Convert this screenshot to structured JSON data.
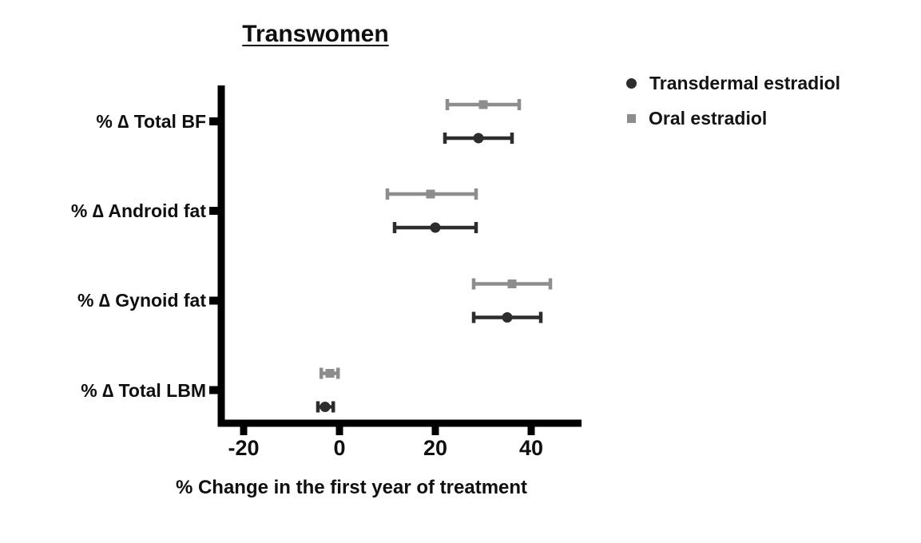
{
  "figure": {
    "title": "Transwomen",
    "x_axis_title": "% Change in the first year of treatment"
  },
  "legend": {
    "position": "top-right",
    "items": [
      {
        "label": "Transdermal estradiol",
        "marker": "circle",
        "color": "#2d2d2d"
      },
      {
        "label": "Oral estradiol",
        "marker": "square",
        "color": "#8d8d8d"
      }
    ]
  },
  "chart_data": {
    "type": "scatter",
    "subtype": "horizontal dot plot with error bars (forest-style)",
    "title": "Transwomen",
    "xlabel": "% Change in the first year of treatment",
    "ylabel": "",
    "categories": [
      "% ∆ Total BF",
      "% ∆ Android fat",
      "% ∆ Gynoid fat",
      "% ∆ Total LBM"
    ],
    "x_ticks": [
      "-20",
      "0",
      "20",
      "40"
    ],
    "x_tick_values": [
      -20,
      0,
      20,
      40
    ],
    "xlim": [
      -25,
      51
    ],
    "grid": false,
    "legend_position": "top-right",
    "axis_color": "#000000",
    "series": [
      {
        "name": "Oral estradiol",
        "marker": "square",
        "color": "#8d8d8d",
        "values": [
          30,
          19,
          36,
          -2
        ],
        "ci_low": [
          22.5,
          10,
          28,
          -3.8
        ],
        "ci_high": [
          37.5,
          28.5,
          44,
          -0.3
        ]
      },
      {
        "name": "Transdermal estradiol",
        "marker": "circle",
        "color": "#2d2d2d",
        "values": [
          29,
          20,
          35,
          -3
        ],
        "ci_low": [
          22,
          11.5,
          28,
          -4.5
        ],
        "ci_high": [
          36,
          28.5,
          42,
          -1.3
        ]
      }
    ]
  }
}
